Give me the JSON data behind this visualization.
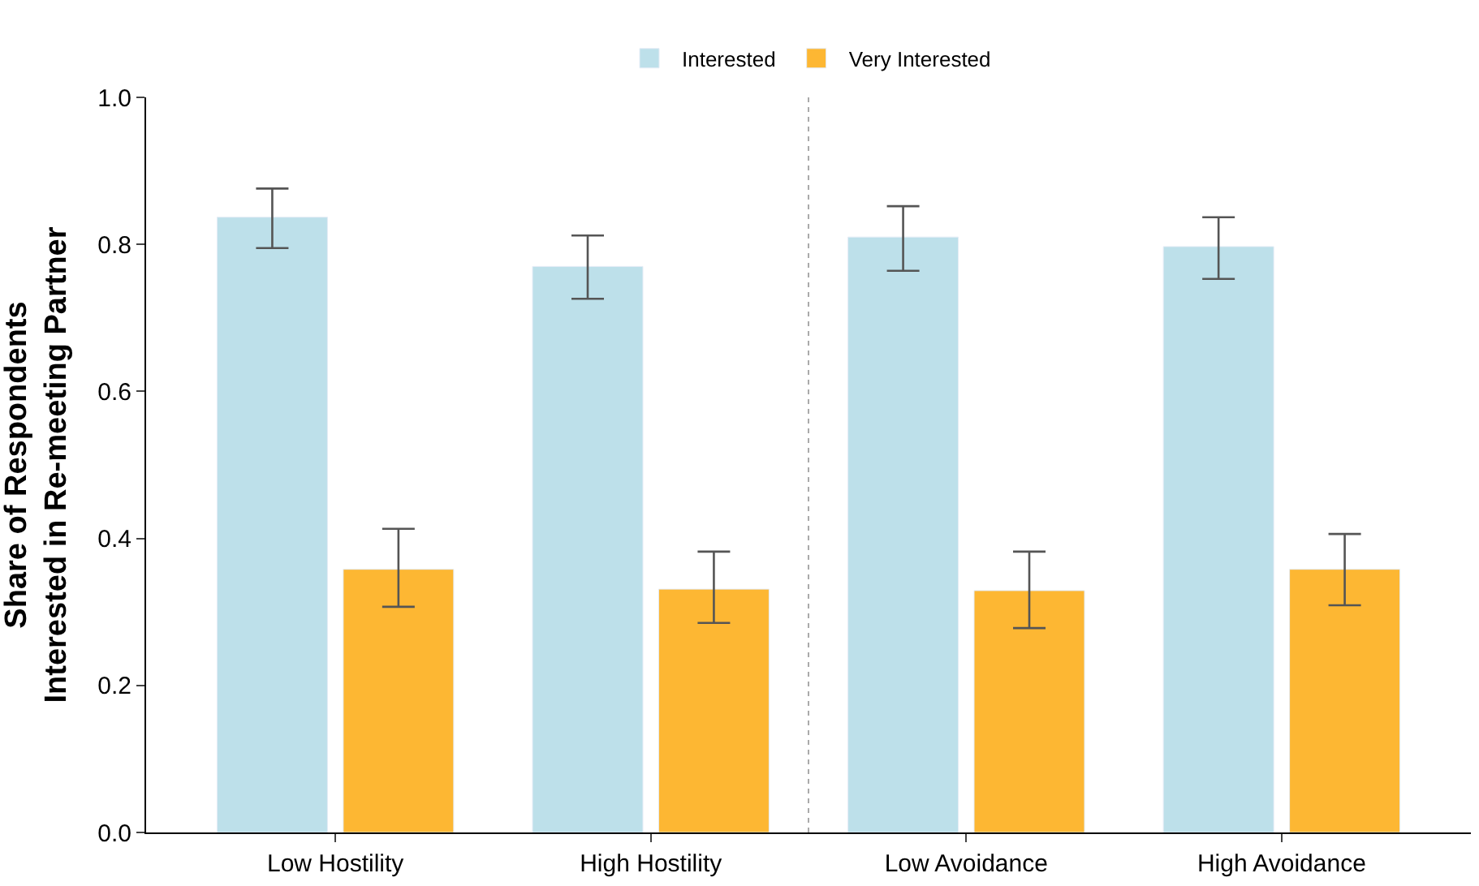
{
  "chart_data": {
    "type": "bar",
    "ylabel": "Share of Respondents\nInterested in Re-meeting Partner",
    "categories": [
      "Low Hostility",
      "High Hostility",
      "Low Avoidance",
      "High Avoidance"
    ],
    "series": [
      {
        "name": "Interested",
        "color": "#bde0ea",
        "values": [
          0.837,
          0.77,
          0.81,
          0.797
        ],
        "errors": [
          [
            0.795,
            0.876
          ],
          [
            0.726,
            0.812
          ],
          [
            0.764,
            0.852
          ],
          [
            0.753,
            0.837
          ]
        ]
      },
      {
        "name": "Very Interested",
        "color": "#fdb733",
        "values": [
          0.358,
          0.331,
          0.329,
          0.358
        ],
        "errors": [
          [
            0.307,
            0.413
          ],
          [
            0.285,
            0.382
          ],
          [
            0.278,
            0.382
          ],
          [
            0.309,
            0.406
          ]
        ]
      }
    ],
    "ylim": [
      0,
      1.0
    ],
    "yticks": [
      {
        "value": 0,
        "label": "0.0"
      },
      {
        "value": 0.2,
        "label": "0.2"
      },
      {
        "value": 0.4,
        "label": "0.4"
      },
      {
        "value": 0.6,
        "label": "0.6"
      },
      {
        "value": 0.8,
        "label": "0.8"
      },
      {
        "value": 1.0,
        "label": "1.0"
      }
    ],
    "legend": "top"
  }
}
